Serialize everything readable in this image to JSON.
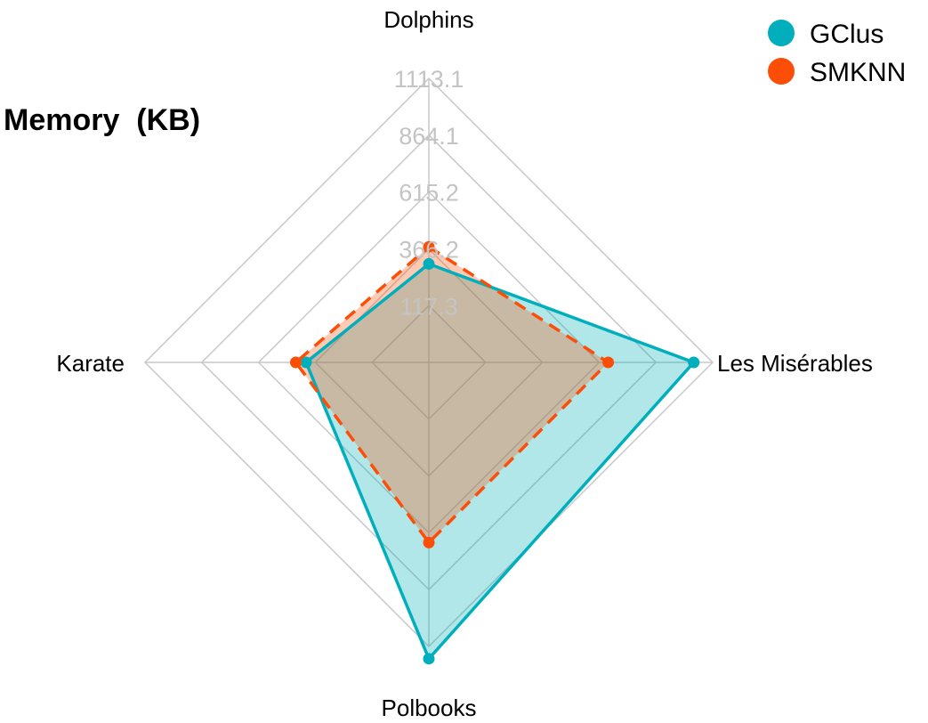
{
  "chart_data": {
    "type": "radar",
    "title": "Memory  (KB)",
    "axes": [
      "Dolphins",
      "Les Misérables",
      "Polbooks",
      "Karate"
    ],
    "ticks": [
      "117.3",
      "366.2",
      "615.2",
      "864.1",
      "1113.1"
    ],
    "series": [
      {
        "name": "GClus",
        "color": "#00AFBB",
        "values": [
          300,
          1030,
          1167,
          407
        ],
        "line_style": "solid",
        "fill_color": "#00AFBB",
        "fill_opacity": 0.3
      },
      {
        "name": "SMKNN",
        "color": "#FC4E07",
        "values": [
          375,
          655,
          658,
          452
        ],
        "line_style": "dashed",
        "fill_color": "#FC4E07",
        "fill_opacity": 0.3
      }
    ],
    "grid": true,
    "legend_position": "top-right"
  }
}
